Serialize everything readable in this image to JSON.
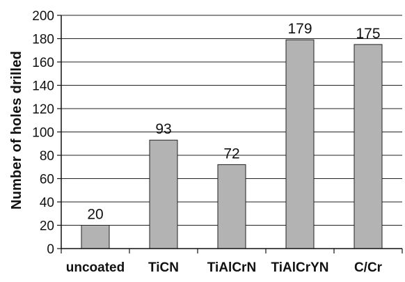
{
  "chart_data": {
    "type": "bar",
    "title": "",
    "xlabel": "",
    "ylabel": "Number of holes drilled",
    "categories": [
      "uncoated",
      "TiCN",
      "TiAlCrN",
      "TiAlCrYN",
      "C/Cr"
    ],
    "values": [
      20,
      93,
      72,
      179,
      175
    ],
    "data_labels": [
      "20",
      "93",
      "72",
      "179",
      "175"
    ],
    "ylim": [
      0,
      200
    ],
    "yticks": [
      0,
      20,
      40,
      60,
      80,
      100,
      120,
      140,
      160,
      180,
      200
    ],
    "grid": "horizontal",
    "legend": "none",
    "colors": {
      "bar_fill": "#b3b3b3",
      "bar_stroke": "#222222",
      "grid": "#222222",
      "axis": "#111111"
    }
  }
}
